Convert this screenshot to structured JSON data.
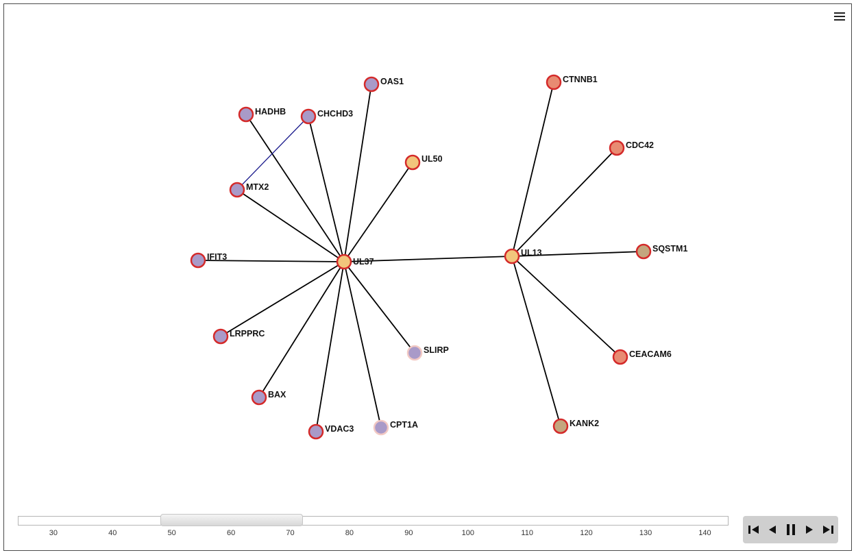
{
  "toolbar": {
    "menu_icon": "hamburger-menu-icon"
  },
  "graph": {
    "nodes": [
      {
        "id": "UL37",
        "label": "UL37",
        "group": "viral"
      },
      {
        "id": "UL13",
        "label": "UL13",
        "group": "viral"
      },
      {
        "id": "UL50",
        "label": "UL50",
        "group": "viral"
      },
      {
        "id": "OAS1",
        "label": "OAS1",
        "group": "purple"
      },
      {
        "id": "HADHB",
        "label": "HADHB",
        "group": "purple"
      },
      {
        "id": "CHCHD3",
        "label": "CHCHD3",
        "group": "purple"
      },
      {
        "id": "MTX2",
        "label": "MTX2",
        "group": "purple"
      },
      {
        "id": "IFIT3",
        "label": "IFIT3",
        "group": "purple"
      },
      {
        "id": "LRPPRC",
        "label": "LRPPRC",
        "group": "purple"
      },
      {
        "id": "BAX",
        "label": "BAX",
        "group": "purple"
      },
      {
        "id": "VDAC3",
        "label": "VDAC3",
        "group": "purple"
      },
      {
        "id": "CPT1A",
        "label": "CPT1A",
        "group": "purple-faint"
      },
      {
        "id": "SLIRP",
        "label": "SLIRP",
        "group": "purple-faint"
      },
      {
        "id": "CTNNB1",
        "label": "CTNNB1",
        "group": "salmon"
      },
      {
        "id": "CDC42",
        "label": "CDC42",
        "group": "salmon"
      },
      {
        "id": "SQSTM1",
        "label": "SQSTM1",
        "group": "tan"
      },
      {
        "id": "CEACAM6",
        "label": "CEACAM6",
        "group": "salmon"
      },
      {
        "id": "KANK2",
        "label": "KANK2",
        "group": "tan"
      }
    ],
    "edges": [
      {
        "source": "UL37",
        "target": "OAS1",
        "kind": "black"
      },
      {
        "source": "UL37",
        "target": "HADHB",
        "kind": "black"
      },
      {
        "source": "UL37",
        "target": "CHCHD3",
        "kind": "black"
      },
      {
        "source": "UL37",
        "target": "UL50",
        "kind": "black"
      },
      {
        "source": "UL37",
        "target": "MTX2",
        "kind": "black"
      },
      {
        "source": "UL37",
        "target": "IFIT3",
        "kind": "black"
      },
      {
        "source": "UL37",
        "target": "LRPPRC",
        "kind": "black"
      },
      {
        "source": "UL37",
        "target": "BAX",
        "kind": "black"
      },
      {
        "source": "UL37",
        "target": "VDAC3",
        "kind": "black"
      },
      {
        "source": "UL37",
        "target": "CPT1A",
        "kind": "black"
      },
      {
        "source": "UL37",
        "target": "SLIRP",
        "kind": "black"
      },
      {
        "source": "UL37",
        "target": "UL13",
        "kind": "black"
      },
      {
        "source": "UL13",
        "target": "CTNNB1",
        "kind": "black"
      },
      {
        "source": "UL13",
        "target": "CDC42",
        "kind": "black"
      },
      {
        "source": "UL13",
        "target": "SQSTM1",
        "kind": "black"
      },
      {
        "source": "UL13",
        "target": "CEACAM6",
        "kind": "black"
      },
      {
        "source": "UL13",
        "target": "KANK2",
        "kind": "black"
      },
      {
        "source": "CHCHD3",
        "target": "MTX2",
        "kind": "blue"
      }
    ],
    "colors": {
      "viral_fill": "#f2c57c",
      "purple_fill": "#a99ac8",
      "salmon_fill": "#e88b72",
      "tan_fill": "#c4a67e",
      "ring": "#d42a2a",
      "faint_ring": "#f2c9c4",
      "edge_black": "#000000",
      "edge_blue": "#1a1a8c"
    }
  },
  "timeline": {
    "ticks": [
      "30",
      "40",
      "50",
      "60",
      "70",
      "80",
      "90",
      "100",
      "110",
      "120",
      "130",
      "140"
    ],
    "range": [
      24,
      144
    ],
    "window": [
      48,
      72
    ]
  },
  "controls": {
    "buttons": [
      {
        "name": "first-frame-icon"
      },
      {
        "name": "step-back-icon"
      },
      {
        "name": "pause-icon"
      },
      {
        "name": "play-icon"
      },
      {
        "name": "last-frame-icon"
      }
    ]
  }
}
